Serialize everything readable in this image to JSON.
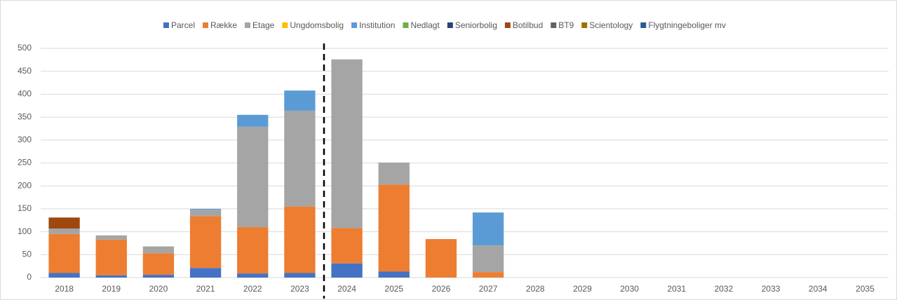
{
  "chart_data": {
    "type": "stacked_bar",
    "categories": [
      "2018",
      "2019",
      "2020",
      "2021",
      "2022",
      "2023",
      "2024",
      "2025",
      "2026",
      "2027",
      "2028",
      "2029",
      "2030",
      "2031",
      "2032",
      "2033",
      "2034",
      "2035"
    ],
    "series": [
      {
        "name": "Parcel",
        "color": "#4472c4",
        "values": [
          10,
          5,
          6,
          21,
          9,
          10,
          31,
          13,
          0,
          0,
          0,
          0,
          0,
          0,
          0,
          0,
          0,
          0
        ]
      },
      {
        "name": "Række",
        "color": "#ed7d31",
        "values": [
          85,
          78,
          47,
          113,
          101,
          145,
          77,
          190,
          84,
          12,
          0,
          0,
          0,
          0,
          0,
          0,
          0,
          0
        ]
      },
      {
        "name": "Etage",
        "color": "#a5a5a5",
        "values": [
          12,
          9,
          15,
          14,
          219,
          209,
          368,
          48,
          0,
          58,
          0,
          0,
          0,
          0,
          0,
          0,
          0,
          0
        ]
      },
      {
        "name": "Ungdomsbolig",
        "color": "#ffc000",
        "values": [
          0,
          0,
          0,
          0,
          0,
          0,
          0,
          0,
          0,
          0,
          0,
          0,
          0,
          0,
          0,
          0,
          0,
          0
        ]
      },
      {
        "name": "Institution",
        "color": "#5b9bd5",
        "values": [
          0,
          0,
          0,
          2,
          26,
          44,
          0,
          0,
          0,
          72,
          0,
          0,
          0,
          0,
          0,
          0,
          0,
          0
        ]
      },
      {
        "name": "Nedlagt",
        "color": "#70ad47",
        "values": [
          0,
          0,
          0,
          0,
          0,
          0,
          0,
          0,
          0,
          0,
          0,
          0,
          0,
          0,
          0,
          0,
          0,
          0
        ]
      },
      {
        "name": "Seniorbolig",
        "color": "#264478",
        "values": [
          0,
          0,
          0,
          0,
          0,
          0,
          0,
          0,
          0,
          0,
          0,
          0,
          0,
          0,
          0,
          0,
          0,
          0
        ]
      },
      {
        "name": "Botilbud",
        "color": "#9e480e",
        "values": [
          24,
          0,
          0,
          0,
          0,
          0,
          0,
          0,
          0,
          0,
          0,
          0,
          0,
          0,
          0,
          0,
          0,
          0
        ]
      },
      {
        "name": "BT9",
        "color": "#636363",
        "values": [
          0,
          0,
          0,
          0,
          0,
          0,
          0,
          0,
          0,
          0,
          0,
          0,
          0,
          0,
          0,
          0,
          0,
          0
        ]
      },
      {
        "name": "Scientology",
        "color": "#997300",
        "values": [
          0,
          0,
          0,
          0,
          0,
          0,
          0,
          0,
          0,
          0,
          0,
          0,
          0,
          0,
          0,
          0,
          0,
          0
        ]
      },
      {
        "name": "Flygtningeboliger mv",
        "color": "#255e91",
        "values": [
          0,
          0,
          0,
          0,
          0,
          0,
          0,
          0,
          0,
          0,
          0,
          0,
          0,
          0,
          0,
          0,
          0,
          0
        ]
      }
    ],
    "ylim": [
      0,
      500
    ],
    "yticks": [
      0,
      50,
      100,
      150,
      200,
      250,
      300,
      350,
      400,
      450,
      500
    ],
    "grid": true,
    "legend": "top"
  }
}
